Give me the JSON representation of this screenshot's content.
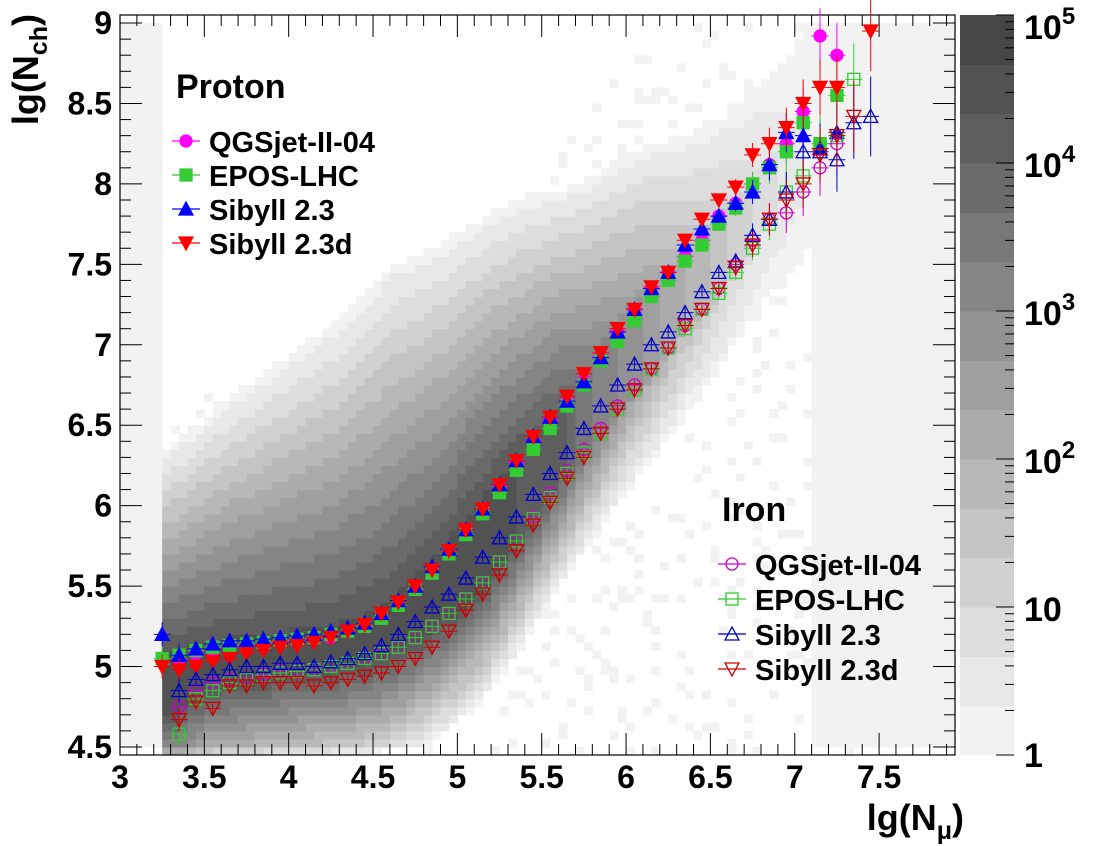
{
  "chart_data": {
    "type": "scatter",
    "xlabel": "lg(N",
    "xlabel_sub": "μ",
    "xlabel_close": ")",
    "ylabel": "lg(N",
    "ylabel_sub": "ch",
    "ylabel_close": ")",
    "xlim": [
      3.0,
      7.95
    ],
    "ylim": [
      4.45,
      9.05
    ],
    "x_ticks": [
      {
        "v": 3,
        "label": "3"
      },
      {
        "v": 3.5,
        "label": "3.5"
      },
      {
        "v": 4,
        "label": "4"
      },
      {
        "v": 4.5,
        "label": "4.5"
      },
      {
        "v": 5,
        "label": "5"
      },
      {
        "v": 5.5,
        "label": "5.5"
      },
      {
        "v": 6,
        "label": "6"
      },
      {
        "v": 6.5,
        "label": "6.5"
      },
      {
        "v": 7,
        "label": "7"
      },
      {
        "v": 7.5,
        "label": "7.5"
      }
    ],
    "y_ticks": [
      {
        "v": 4.5,
        "label": "4.5"
      },
      {
        "v": 5,
        "label": "5"
      },
      {
        "v": 5.5,
        "label": "5.5"
      },
      {
        "v": 6,
        "label": "6"
      },
      {
        "v": 6.5,
        "label": "6.5"
      },
      {
        "v": 7,
        "label": "7"
      },
      {
        "v": 7.5,
        "label": "7.5"
      },
      {
        "v": 8,
        "label": "8"
      },
      {
        "v": 8.5,
        "label": "8.5"
      },
      {
        "v": 9,
        "label": "9"
      }
    ],
    "colorbar": {
      "scale": "log",
      "range": [
        1,
        100000
      ],
      "levels": 15,
      "ticks": [
        {
          "v": 1,
          "base": "1",
          "exp": ""
        },
        {
          "v": 10,
          "base": "10",
          "exp": ""
        },
        {
          "v": 100,
          "base": "10",
          "exp": "2"
        },
        {
          "v": 1000,
          "base": "10",
          "exp": "3"
        },
        {
          "v": 10000,
          "base": "10",
          "exp": "4"
        },
        {
          "v": 100000,
          "base": "10",
          "exp": "5"
        }
      ]
    },
    "groups": [
      {
        "title": "Proton",
        "filled": true,
        "legend_position": "top-left"
      },
      {
        "title": "Iron",
        "filled": false,
        "legend_position": "bottom-right"
      }
    ],
    "series": [
      {
        "name": "QGSjet-II-04",
        "group": "Proton",
        "marker": "circle",
        "color": "#ff00ff",
        "x": [
          3.35,
          3.45,
          3.55,
          3.65,
          3.75,
          3.85,
          3.95,
          4.05,
          4.15,
          4.25,
          4.35,
          4.45,
          4.55,
          4.65,
          4.75,
          4.85,
          4.95,
          5.05,
          5.15,
          5.25,
          5.35,
          5.45,
          5.55,
          5.65,
          5.75,
          5.85,
          5.95,
          6.05,
          6.15,
          6.25,
          6.35,
          6.45,
          6.55,
          6.65,
          6.75,
          6.85,
          6.95,
          7.05,
          7.15,
          7.25
        ],
        "y": [
          5.05,
          5.08,
          5.1,
          5.12,
          5.13,
          5.14,
          5.15,
          5.16,
          5.17,
          5.18,
          5.22,
          5.25,
          5.3,
          5.38,
          5.48,
          5.6,
          5.72,
          5.85,
          5.98,
          6.12,
          6.27,
          6.4,
          6.53,
          6.65,
          6.78,
          6.93,
          7.08,
          7.22,
          7.35,
          7.45,
          7.55,
          7.65,
          7.8,
          7.88,
          8.0,
          8.12,
          8.25,
          8.45,
          8.92,
          8.8
        ]
      },
      {
        "name": "EPOS-LHC",
        "group": "Proton",
        "marker": "square",
        "color": "#33cc33",
        "x": [
          3.25,
          3.35,
          3.45,
          3.55,
          3.65,
          3.75,
          3.85,
          3.95,
          4.05,
          4.15,
          4.25,
          4.35,
          4.45,
          4.55,
          4.65,
          4.75,
          4.85,
          4.95,
          5.05,
          5.15,
          5.25,
          5.35,
          5.45,
          5.55,
          5.65,
          5.75,
          5.85,
          5.95,
          6.05,
          6.15,
          6.25,
          6.35,
          6.45,
          6.55,
          6.65,
          6.75,
          6.85,
          6.95,
          7.05,
          7.15,
          7.25
        ],
        "y": [
          5.05,
          5.07,
          5.1,
          5.12,
          5.13,
          5.14,
          5.15,
          5.16,
          5.17,
          5.18,
          5.2,
          5.22,
          5.25,
          5.3,
          5.38,
          5.48,
          5.58,
          5.7,
          5.82,
          5.95,
          6.08,
          6.22,
          6.35,
          6.48,
          6.62,
          6.75,
          6.9,
          7.02,
          7.15,
          7.3,
          7.4,
          7.52,
          7.62,
          7.75,
          7.85,
          8.0,
          8.1,
          8.2,
          8.38,
          8.25,
          8.55
        ]
      },
      {
        "name": "Sibyll 2.3",
        "group": "Proton",
        "marker": "triangle-up",
        "color": "#0000ff",
        "x": [
          3.25,
          3.35,
          3.45,
          3.55,
          3.65,
          3.75,
          3.85,
          3.95,
          4.05,
          4.15,
          4.25,
          4.35,
          4.45,
          4.55,
          4.65,
          4.75,
          4.85,
          4.95,
          5.05,
          5.15,
          5.25,
          5.35,
          5.45,
          5.55,
          5.65,
          5.75,
          5.85,
          5.95,
          6.05,
          6.15,
          6.25,
          6.35,
          6.45,
          6.55,
          6.65,
          6.75,
          6.85,
          6.95,
          7.05,
          7.15,
          7.25
        ],
        "y": [
          5.2,
          5.07,
          5.11,
          5.14,
          5.16,
          5.16,
          5.17,
          5.18,
          5.19,
          5.2,
          5.22,
          5.24,
          5.27,
          5.33,
          5.41,
          5.5,
          5.62,
          5.73,
          5.85,
          5.98,
          6.13,
          6.28,
          6.43,
          6.55,
          6.65,
          6.77,
          6.92,
          7.08,
          7.22,
          7.35,
          7.45,
          7.62,
          7.72,
          7.8,
          7.88,
          7.95,
          8.12,
          8.32,
          8.3,
          8.22,
          8.32
        ]
      },
      {
        "name": "Sibyll 2.3d",
        "group": "Proton",
        "marker": "triangle-down",
        "color": "#ff0000",
        "x": [
          3.25,
          3.35,
          3.45,
          3.55,
          3.65,
          3.75,
          3.85,
          3.95,
          4.05,
          4.15,
          4.25,
          4.35,
          4.45,
          4.55,
          4.65,
          4.75,
          4.85,
          4.95,
          5.05,
          5.15,
          5.25,
          5.35,
          5.45,
          5.55,
          5.65,
          5.75,
          5.85,
          5.95,
          6.05,
          6.15,
          6.25,
          6.35,
          6.45,
          6.55,
          6.65,
          6.75,
          6.85,
          6.95,
          7.05,
          7.15,
          7.25,
          7.45
        ],
        "y": [
          5.0,
          4.98,
          5.0,
          5.03,
          5.05,
          5.08,
          5.1,
          5.12,
          5.13,
          5.15,
          5.18,
          5.22,
          5.26,
          5.33,
          5.4,
          5.5,
          5.6,
          5.72,
          5.85,
          5.98,
          6.13,
          6.28,
          6.43,
          6.55,
          6.68,
          6.82,
          6.95,
          7.1,
          7.22,
          7.36,
          7.45,
          7.65,
          7.78,
          7.9,
          7.98,
          8.18,
          8.25,
          8.35,
          8.5,
          8.6,
          8.6,
          8.95
        ]
      },
      {
        "name": "QGSjet-II-04",
        "group": "Iron",
        "marker": "circle",
        "color": "#cc00cc",
        "x": [
          3.35,
          3.45,
          3.55,
          3.65,
          3.75,
          3.85,
          3.95,
          4.05,
          4.15,
          4.25,
          4.35,
          4.45,
          4.55,
          4.65,
          4.75,
          4.85,
          4.95,
          5.05,
          5.15,
          5.25,
          5.35,
          5.45,
          5.55,
          5.65,
          5.75,
          5.85,
          5.95,
          6.05,
          6.15,
          6.25,
          6.35,
          6.45,
          6.55,
          6.65,
          6.75,
          6.85,
          6.95,
          7.05,
          7.15,
          7.25
        ],
        "y": [
          4.75,
          4.85,
          4.9,
          4.92,
          4.93,
          4.95,
          4.97,
          4.98,
          4.99,
          5.0,
          5.02,
          5.05,
          5.08,
          5.12,
          5.18,
          5.25,
          5.33,
          5.42,
          5.52,
          5.65,
          5.78,
          5.93,
          6.08,
          6.22,
          6.35,
          6.48,
          6.62,
          6.75,
          6.85,
          6.98,
          7.12,
          7.22,
          7.35,
          7.5,
          7.65,
          7.78,
          7.82,
          7.95,
          8.1,
          8.25
        ]
      },
      {
        "name": "EPOS-LHC",
        "group": "Iron",
        "marker": "square",
        "color": "#33cc33",
        "x": [
          3.35,
          3.45,
          3.55,
          3.65,
          3.75,
          3.85,
          3.95,
          4.05,
          4.15,
          4.25,
          4.35,
          4.45,
          4.55,
          4.65,
          4.75,
          4.85,
          4.95,
          5.05,
          5.15,
          5.25,
          5.35,
          5.45,
          5.55,
          5.65,
          5.75,
          5.85,
          5.95,
          6.05,
          6.15,
          6.25,
          6.35,
          6.45,
          6.55,
          6.65,
          6.75,
          6.85,
          6.95,
          7.05,
          7.15,
          7.25,
          7.35
        ],
        "y": [
          4.58,
          4.8,
          4.85,
          4.9,
          4.92,
          4.94,
          4.96,
          4.97,
          4.98,
          5.0,
          5.02,
          5.05,
          5.08,
          5.12,
          5.18,
          5.25,
          5.33,
          5.42,
          5.52,
          5.65,
          5.78,
          5.92,
          6.05,
          6.2,
          6.33,
          6.45,
          6.6,
          6.72,
          6.85,
          6.98,
          7.1,
          7.22,
          7.32,
          7.45,
          7.6,
          7.75,
          7.95,
          8.05,
          8.25,
          8.3,
          8.65
        ]
      },
      {
        "name": "Sibyll 2.3",
        "group": "Iron",
        "marker": "triangle-up",
        "color": "#0000cc",
        "x": [
          3.35,
          3.45,
          3.55,
          3.65,
          3.75,
          3.85,
          3.95,
          4.05,
          4.15,
          4.25,
          4.35,
          4.45,
          4.55,
          4.65,
          4.75,
          4.85,
          4.95,
          5.05,
          5.15,
          5.25,
          5.35,
          5.45,
          5.55,
          5.65,
          5.75,
          5.85,
          5.95,
          6.05,
          6.15,
          6.25,
          6.35,
          6.45,
          6.55,
          6.65,
          6.75,
          6.85,
          6.95,
          7.05,
          7.15,
          7.25,
          7.35,
          7.45
        ],
        "y": [
          4.85,
          4.92,
          4.95,
          4.98,
          5.0,
          5.0,
          5.02,
          5.02,
          5.0,
          5.03,
          5.05,
          5.08,
          5.13,
          5.2,
          5.28,
          5.37,
          5.45,
          5.55,
          5.68,
          5.8,
          5.93,
          6.07,
          6.2,
          6.33,
          6.48,
          6.62,
          6.75,
          6.88,
          7.0,
          7.08,
          7.2,
          7.33,
          7.45,
          7.52,
          7.68,
          7.78,
          7.95,
          8.2,
          8.2,
          8.15,
          8.38,
          8.42
        ]
      },
      {
        "name": "Sibyll 2.3d",
        "group": "Iron",
        "marker": "triangle-down",
        "color": "#cc0000",
        "x": [
          3.35,
          3.45,
          3.55,
          3.65,
          3.75,
          3.85,
          3.95,
          4.05,
          4.15,
          4.25,
          4.35,
          4.45,
          4.55,
          4.65,
          4.75,
          4.85,
          4.95,
          5.05,
          5.15,
          5.25,
          5.35,
          5.45,
          5.55,
          5.65,
          5.75,
          5.85,
          5.95,
          6.05,
          6.15,
          6.25,
          6.35,
          6.45,
          6.55,
          6.65,
          6.75,
          6.85,
          6.95,
          7.05,
          7.15,
          7.25,
          7.35
        ],
        "y": [
          4.67,
          4.78,
          4.74,
          4.88,
          4.88,
          4.9,
          4.9,
          4.9,
          4.88,
          4.9,
          4.92,
          4.94,
          4.96,
          5.0,
          5.05,
          5.12,
          5.22,
          5.35,
          5.45,
          5.57,
          5.72,
          5.88,
          6.02,
          6.17,
          6.3,
          6.45,
          6.6,
          6.72,
          6.85,
          6.98,
          7.12,
          7.22,
          7.35,
          7.48,
          7.62,
          7.78,
          7.9,
          8.0,
          8.18,
          8.3,
          8.42
        ]
      }
    ]
  }
}
